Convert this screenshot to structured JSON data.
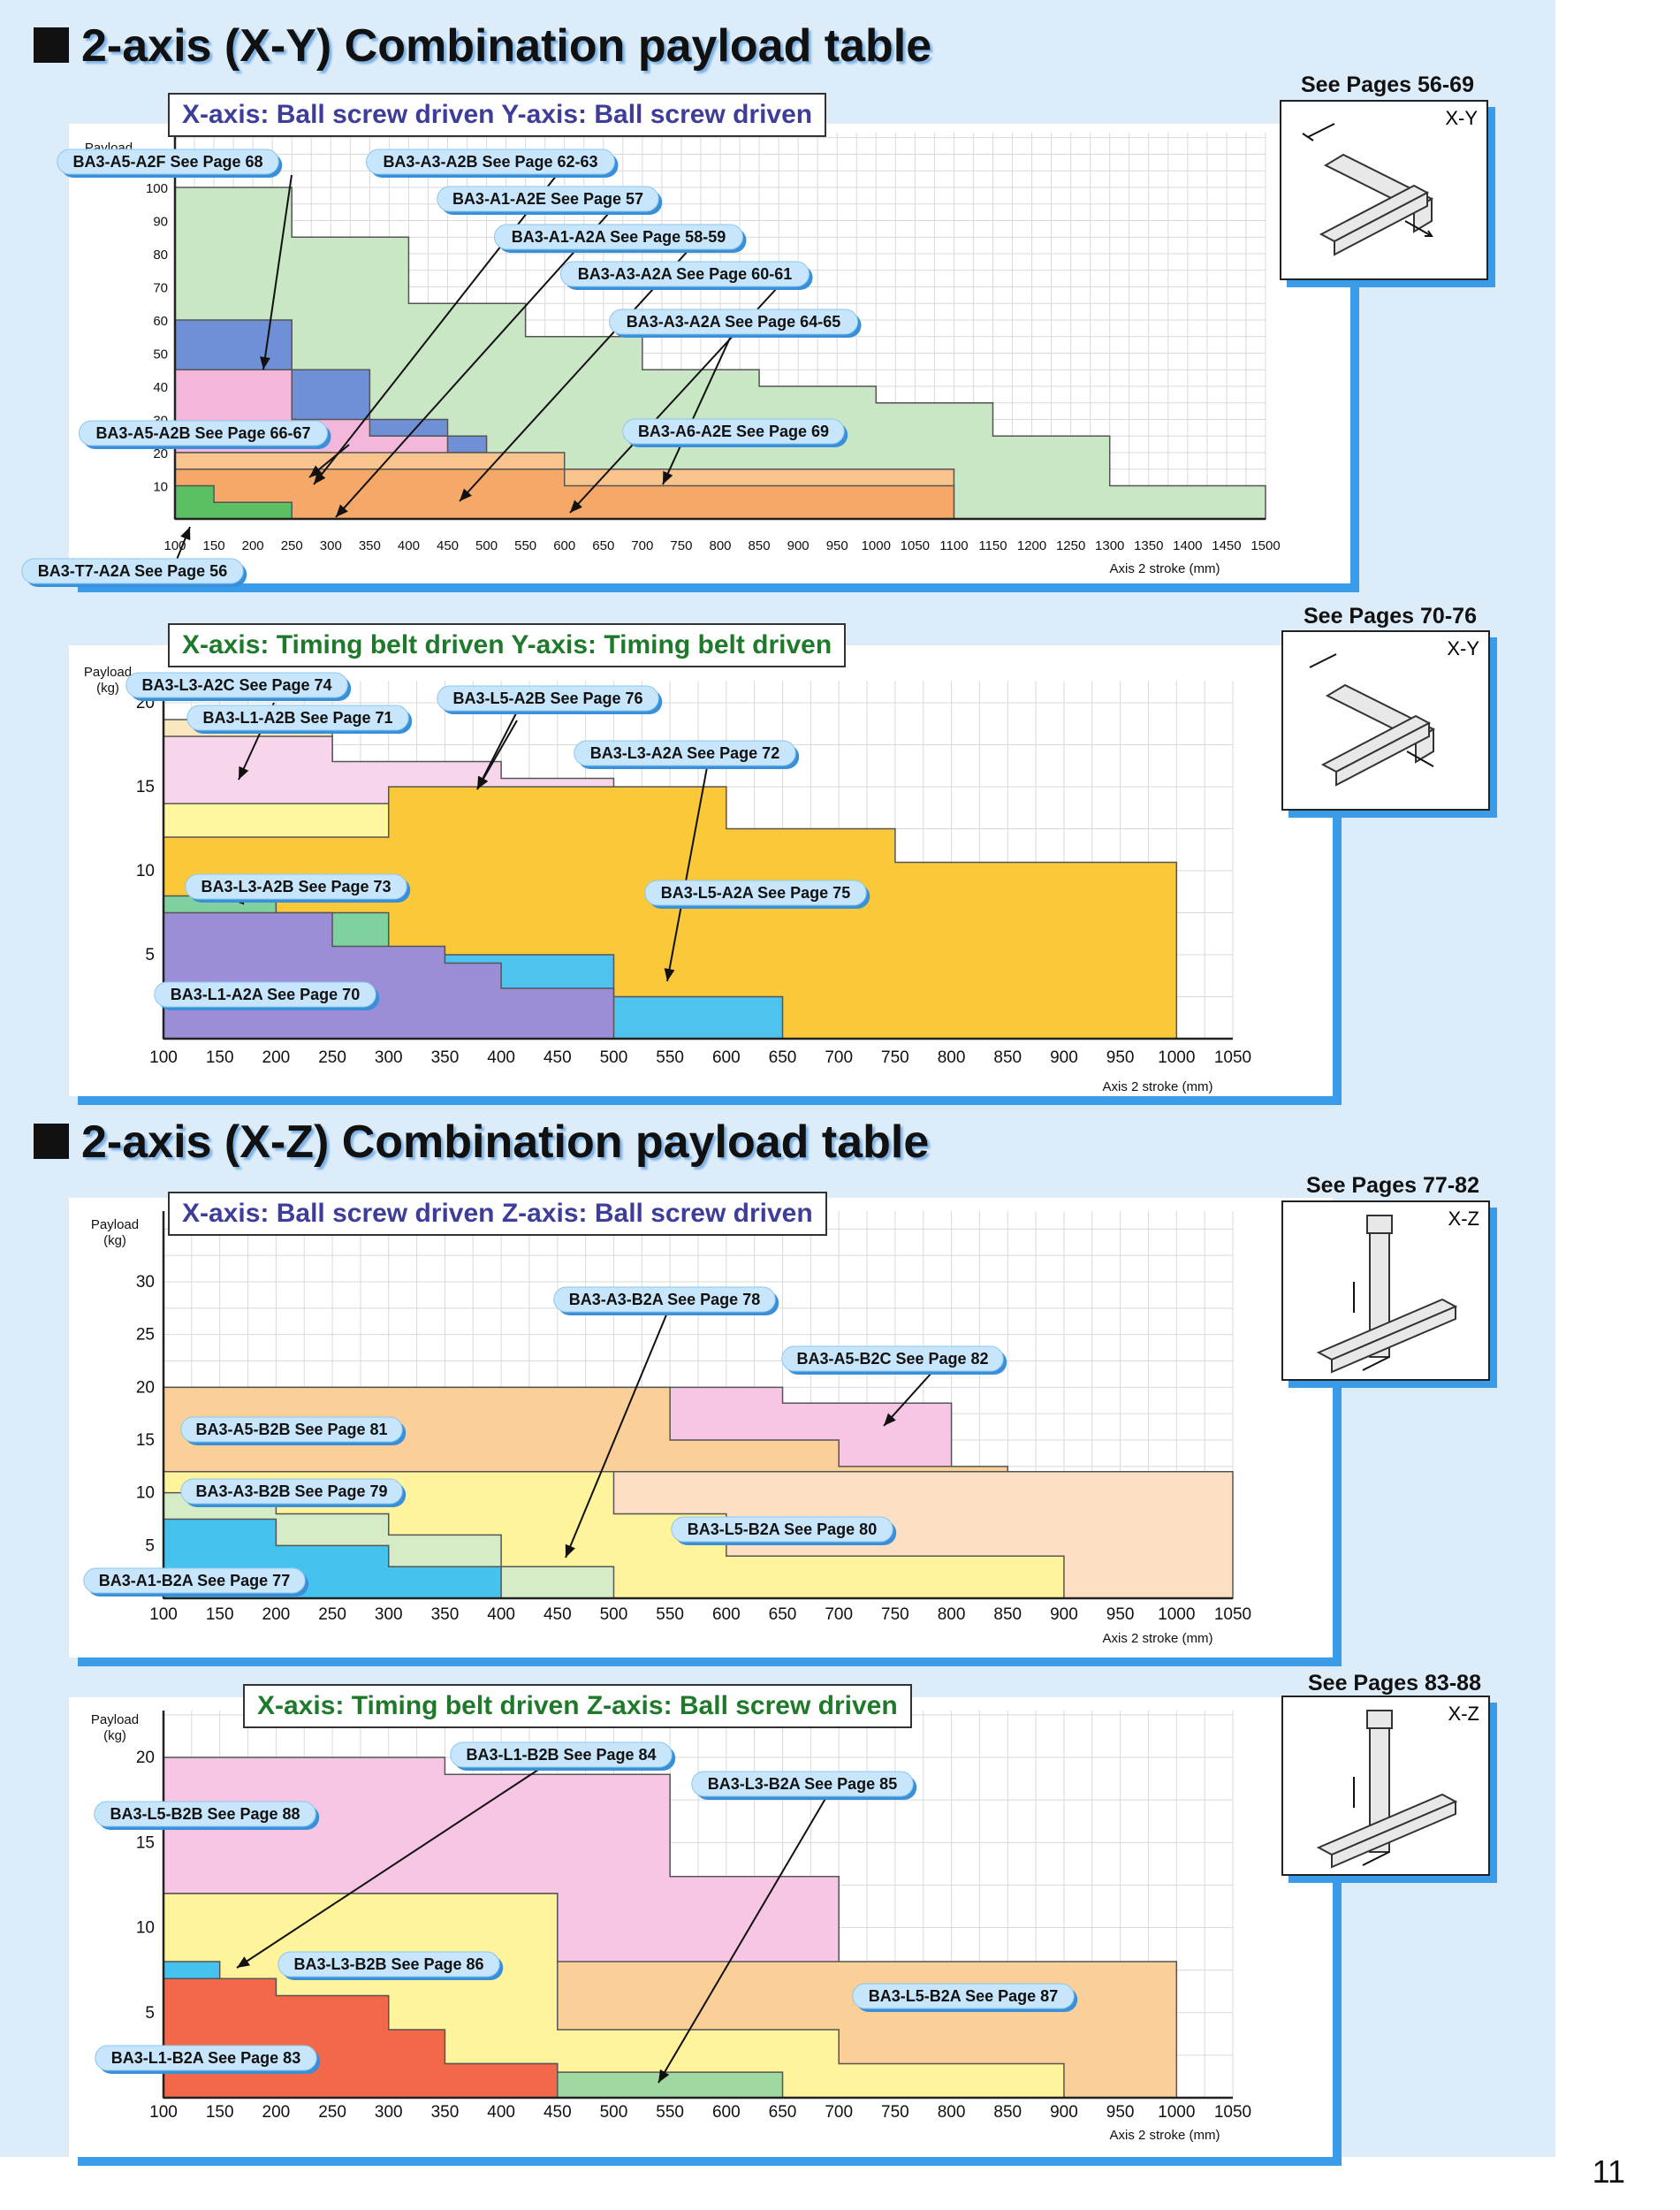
{
  "section1": {
    "title": "2-axis (X-Y) Combination payload table"
  },
  "section2": {
    "title": "2-axis (X-Z) Combination payload table"
  },
  "page_number": "11",
  "chart_data": [
    {
      "type": "area",
      "title": "X-axis: Ball screw driven Y-axis: Ball screw driven",
      "see_pages": "See Pages 56-69",
      "thumb_label": "X-Y",
      "ylabel": "Payload (kg)",
      "xlabel": "Axis 2 stroke (mm)",
      "xlim": [
        100,
        1500
      ],
      "ylim": [
        0,
        100
      ],
      "xticks": [
        100,
        150,
        200,
        250,
        300,
        350,
        400,
        450,
        500,
        550,
        600,
        650,
        700,
        750,
        800,
        850,
        900,
        950,
        1000,
        1050,
        1100,
        1150,
        1200,
        1250,
        1300,
        1350,
        1400,
        1450,
        1500
      ],
      "yticks": [
        10,
        20,
        30,
        40,
        50,
        60,
        70,
        80,
        90,
        100
      ],
      "series": [
        {
          "name": "BA3-A5-A2F See Page 68",
          "color": "#c9e7c4",
          "x": [
            100,
            250,
            250,
            400,
            400,
            550,
            550,
            700,
            700,
            850,
            850,
            1000,
            1000,
            1150,
            1150,
            1300,
            1300,
            1500
          ],
          "y": [
            100,
            100,
            85,
            85,
            65,
            65,
            55,
            55,
            45,
            45,
            40,
            40,
            35,
            35,
            25,
            25,
            10,
            10
          ]
        },
        {
          "name": "BA3-A5-A2B See Page 66-67",
          "color": "#6f8fd6",
          "x": [
            100,
            250,
            250,
            350,
            350,
            450,
            450,
            500
          ],
          "y": [
            60,
            60,
            45,
            45,
            30,
            30,
            25,
            25
          ]
        },
        {
          "name": "BA3-A3-A2B See Page 62-63",
          "color": "#f4b7dc",
          "x": [
            100,
            250,
            250,
            350,
            350,
            450,
            450,
            500
          ],
          "y": [
            45,
            45,
            30,
            30,
            25,
            25,
            20,
            20
          ]
        },
        {
          "name": "BA3-A1-A2E See Page 57",
          "color": "#f5e3a6",
          "x": [
            100,
            300,
            300,
            400,
            400,
            550,
            550,
            650
          ],
          "y": [
            20,
            20,
            15,
            15,
            10,
            10,
            5,
            5
          ]
        },
        {
          "name": "BA3-A1-A2A See Page 58-59",
          "color": "#fbf39a",
          "x": [
            100,
            300,
            300,
            400,
            400,
            550
          ],
          "y": [
            15,
            15,
            10,
            10,
            5,
            5
          ]
        },
        {
          "name": "BA3-A3-A2A See Page 60-61",
          "color": "#fde89a",
          "x": [
            100,
            450,
            450,
            600
          ],
          "y": [
            12,
            12,
            8,
            8
          ]
        },
        {
          "name": "BA3-A3-A2A See Page 64-65",
          "color": "#f9c38e",
          "x": [
            100,
            600,
            600,
            1100
          ],
          "y": [
            20,
            20,
            15,
            15
          ]
        },
        {
          "name": "BA3-A6-A2E See Page 69",
          "color": "#f6a868",
          "x": [
            100,
            600,
            600,
            1100
          ],
          "y": [
            15,
            15,
            10,
            10
          ]
        },
        {
          "name": "BA3-T7-A2A See Page 56",
          "color": "#5cbf62",
          "x": [
            100,
            150,
            150,
            250
          ],
          "y": [
            10,
            10,
            5,
            5
          ]
        }
      ]
    },
    {
      "type": "area",
      "title": "X-axis: Timing belt driven Y-axis: Timing belt driven",
      "see_pages": "See Pages 70-76",
      "thumb_label": "X-Y",
      "ylabel": "Payload (kg)",
      "xlabel": "Axis 2 stroke (mm)",
      "xlim": [
        100,
        1050
      ],
      "ylim": [
        0,
        20
      ],
      "xticks": [
        100,
        150,
        200,
        250,
        300,
        350,
        400,
        450,
        500,
        550,
        600,
        650,
        700,
        750,
        800,
        850,
        900,
        950,
        1000,
        1050
      ],
      "yticks": [
        5,
        10,
        15,
        20
      ],
      "series": [
        {
          "name": "BA3-L3-A2C See Page 74",
          "color": "#fbe7bd",
          "x": [
            100,
            250
          ],
          "y": [
            19,
            19
          ]
        },
        {
          "name": "BA3-L5-A2B See Page 76",
          "color": "#f7d6ec",
          "x": [
            100,
            250,
            250,
            400,
            400,
            500
          ],
          "y": [
            18,
            18,
            16.5,
            16.5,
            15.5,
            15.5
          ]
        },
        {
          "name": "BA3-L3-A2A See Page 72",
          "color": "#fff6a0",
          "x": [
            100,
            300,
            300,
            450,
            450,
            550,
            550,
            650,
            650,
            800
          ],
          "y": [
            14,
            14,
            10.5,
            10.5,
            8.5,
            8.5,
            4,
            4,
            1.5,
            1.5
          ]
        },
        {
          "name": "BA3-L5-A2A See Page 75",
          "color": "#fbc83a",
          "x": [
            100,
            300,
            300,
            600,
            600,
            750,
            750,
            1000
          ],
          "y": [
            12,
            12,
            15,
            15,
            12.5,
            12.5,
            10.5,
            10.5
          ]
        },
        {
          "name": "BA3-L3-A2B See Page 73",
          "color": "#7fd1a0",
          "x": [
            100,
            200,
            200,
            300
          ],
          "y": [
            8.5,
            8.5,
            7.5,
            7.5
          ]
        },
        {
          "name": "BA3-L1-A2B See Page 71",
          "color": "#4ec3ee",
          "x": [
            100,
            500,
            500,
            650
          ],
          "y": [
            5,
            5,
            2.5,
            2.5
          ]
        },
        {
          "name": "BA3-L1-A2A See Page 70",
          "color": "#9b8ed6",
          "x": [
            100,
            250,
            250,
            350,
            350,
            400,
            400,
            500
          ],
          "y": [
            7.5,
            7.5,
            5.5,
            5.5,
            4.5,
            4.5,
            3,
            3
          ]
        }
      ]
    },
    {
      "type": "area",
      "title": "X-axis: Ball screw driven Z-axis: Ball screw driven",
      "see_pages": "See Pages 77-82",
      "thumb_label": "X-Z",
      "ylabel": "Payload (kg)",
      "xlabel": "Axis 2 stroke (mm)",
      "xlim": [
        100,
        1050
      ],
      "ylim": [
        0,
        30
      ],
      "xticks": [
        100,
        150,
        200,
        250,
        300,
        350,
        400,
        450,
        500,
        550,
        600,
        650,
        700,
        750,
        800,
        850,
        900,
        950,
        1000,
        1050
      ],
      "yticks": [
        5,
        10,
        15,
        20,
        25,
        30
      ],
      "series": [
        {
          "name": "BA3-A5-B2C See Page 82",
          "color": "#f7c6e4",
          "x": [
            100,
            650,
            650,
            800,
            800,
            1000
          ],
          "y": [
            20,
            20,
            18.5,
            18.5,
            10,
            10
          ]
        },
        {
          "name": "BA3-A5-B2B See Page 81",
          "color": "#fbcf98",
          "x": [
            100,
            550,
            550,
            700,
            700,
            850
          ],
          "y": [
            20,
            20,
            15,
            15,
            12.5,
            12.5
          ]
        },
        {
          "name": "BA3-L5-B2A See Page 80",
          "color": "#fde0c3",
          "x": [
            100,
            1050
          ],
          "y": [
            12,
            12
          ]
        },
        {
          "name": "BA3-A3-B2B See Page 79",
          "color": "#fff39b",
          "x": [
            100,
            500,
            500,
            600,
            600,
            900
          ],
          "y": [
            12,
            12,
            8,
            8,
            4,
            4
          ]
        },
        {
          "name": "BA3-A3-B2A See Page 78",
          "color": "#d6ecc6",
          "x": [
            100,
            200,
            200,
            300,
            300,
            400,
            400,
            500
          ],
          "y": [
            10,
            10,
            8,
            8,
            6,
            6,
            3,
            3
          ]
        },
        {
          "name": "BA3-A1-B2A See Page 77",
          "color": "#45c3ee",
          "x": [
            100,
            200,
            200,
            300,
            300,
            400
          ],
          "y": [
            7.5,
            7.5,
            5,
            5,
            3,
            3
          ]
        }
      ]
    },
    {
      "type": "area",
      "title": "X-axis: Timing belt driven Z-axis: Ball screw driven",
      "see_pages": "See Pages 83-88",
      "thumb_label": "X-Z",
      "ylabel": "Payload (kg)",
      "xlabel": "Axis 2 stroke (mm)",
      "xlim": [
        100,
        1050
      ],
      "ylim": [
        0,
        20
      ],
      "xticks": [
        100,
        150,
        200,
        250,
        300,
        350,
        400,
        450,
        500,
        550,
        600,
        650,
        700,
        750,
        800,
        850,
        900,
        950,
        1000,
        1050
      ],
      "yticks": [
        5,
        10,
        15,
        20
      ],
      "series": [
        {
          "name": "BA3-L5-B2B See Page 88",
          "color": "#f7c6e4",
          "x": [
            100,
            350,
            350,
            550,
            550,
            700
          ],
          "y": [
            20,
            20,
            19,
            19,
            13,
            13
          ]
        },
        {
          "name": "BA3-L5-B2A See Page 87",
          "color": "#fbcf98",
          "x": [
            100,
            450,
            450,
            1000
          ],
          "y": [
            12,
            12,
            8,
            8
          ]
        },
        {
          "name": "BA3-L3-B2B See Page 86",
          "color": "#fff39b",
          "x": [
            100,
            450,
            450,
            700,
            700,
            900
          ],
          "y": [
            12,
            12,
            4,
            4,
            2,
            2
          ]
        },
        {
          "name": "BA3-L3-B2A See Page 85",
          "color": "#9fd8a0",
          "x": [
            100,
            450,
            450,
            650
          ],
          "y": [
            2,
            2,
            1.5,
            1.5
          ]
        },
        {
          "name": "BA3-L1-B2B See Page 84",
          "color": "#45c3ee",
          "x": [
            100,
            150,
            150,
            200
          ],
          "y": [
            8,
            8,
            7,
            7
          ]
        },
        {
          "name": "BA3-L1-B2A See Page 83",
          "color": "#f2694a",
          "x": [
            100,
            200,
            200,
            300,
            300,
            350,
            350,
            450
          ],
          "y": [
            7,
            7,
            6,
            6,
            4,
            4,
            2,
            2
          ]
        }
      ]
    }
  ]
}
